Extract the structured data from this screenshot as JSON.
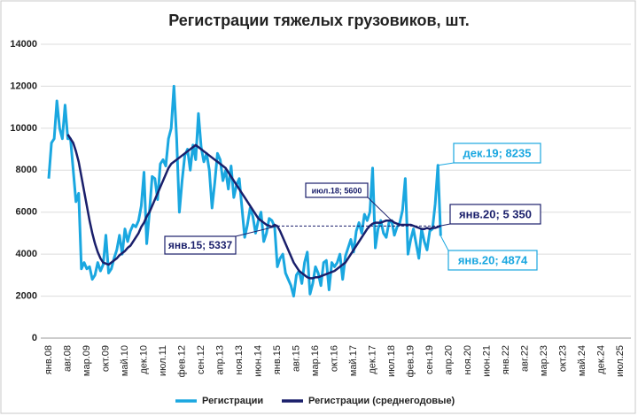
{
  "chart_data": {
    "type": "line",
    "title": "Регистрации тяжелых грузовиков, шт.",
    "categories": [
      "янв.08",
      null,
      null,
      null,
      null,
      null,
      null,
      "авг.08",
      null,
      null,
      null,
      null,
      null,
      null,
      "мар.09",
      null,
      null,
      null,
      null,
      null,
      null,
      "окт.09",
      null,
      null,
      null,
      null,
      null,
      null,
      "май.10",
      null,
      null,
      null,
      null,
      null,
      null,
      "дек.10",
      null,
      null,
      null,
      null,
      null,
      null,
      "июл.11",
      null,
      null,
      null,
      null,
      null,
      null,
      "фев.12",
      null,
      null,
      null,
      null,
      null,
      null,
      "сен.12",
      null,
      null,
      null,
      null,
      null,
      null,
      "апр.13",
      null,
      null,
      null,
      null,
      null,
      null,
      "ноя.13",
      null,
      null,
      null,
      null,
      null,
      null,
      "июн.14",
      null,
      null,
      null,
      null,
      null,
      null,
      "янв.15",
      null,
      null,
      null,
      null,
      null,
      null,
      "авг.15",
      null,
      null,
      null,
      null,
      null,
      null,
      "мар.16",
      null,
      null,
      null,
      null,
      null,
      null,
      "окт.16",
      null,
      null,
      null,
      null,
      null,
      null,
      "май.17",
      null,
      null,
      null,
      null,
      null,
      null,
      "дек.17",
      null,
      null,
      null,
      null,
      null,
      null,
      "июл.18",
      null,
      null,
      null,
      null,
      null,
      null,
      "фев.19",
      null,
      null,
      null,
      null,
      null,
      null,
      "сен.19",
      null,
      null,
      null,
      null,
      null,
      null,
      "апр.20",
      null,
      null,
      null,
      null,
      null,
      null,
      "ноя.20",
      null,
      null,
      null,
      null,
      null,
      null,
      "июн.21",
      null,
      null,
      null,
      null,
      null,
      null,
      "янв.22",
      null,
      null,
      null,
      null,
      null,
      null,
      "авг.22",
      null,
      null,
      null,
      null,
      null,
      null,
      "мар.23",
      null,
      null,
      null,
      null,
      null,
      null,
      "окт.23",
      null,
      null,
      null,
      null,
      null,
      null,
      "май.24",
      null,
      null,
      null,
      null,
      null,
      null,
      "дек.24",
      null,
      null,
      null,
      null,
      null,
      null,
      "июл.25"
    ],
    "series": [
      {
        "name": "Регистрации",
        "color": "#1aa7e0",
        "values": [
          7600,
          9300,
          9500,
          11300,
          10000,
          9500,
          11100,
          9500,
          9500,
          8000,
          6500,
          6900,
          3300,
          3600,
          3300,
          3400,
          2800,
          3000,
          3600,
          3200,
          3500,
          4900,
          3100,
          3300,
          3800,
          4200,
          4900,
          4000,
          5200,
          4600,
          5100,
          5400,
          5300,
          5600,
          6300,
          7900,
          4500,
          6000,
          7700,
          7600,
          6600,
          8300,
          8500,
          8200,
          9500,
          10000,
          12000,
          9500,
          6000,
          7500,
          8700,
          9000,
          8000,
          9200,
          8500,
          10700,
          9100,
          8400,
          8800,
          8000,
          6200,
          7400,
          8800,
          8500,
          7500,
          8000,
          7100,
          8200,
          6700,
          7300,
          7600,
          6200,
          4800,
          5400,
          6200,
          5800,
          5000,
          5600,
          6000,
          4600,
          5000,
          5700,
          5600,
          5300,
          3400,
          3800,
          4000,
          3100,
          2800,
          2500,
          2000,
          3000,
          3200,
          2600,
          3600,
          4100,
          2100,
          2600,
          3400,
          3100,
          2500,
          3600,
          3700,
          2300,
          3600,
          3400,
          3600,
          4000,
          2800,
          3900,
          4300,
          4700,
          4100,
          5100,
          5500,
          5000,
          5900,
          5600,
          6000,
          8100,
          4300,
          5200,
          5600,
          5000,
          4800,
          5500,
          5600,
          4900,
          5300,
          5500,
          6100,
          7600,
          4000,
          4700,
          5200,
          4500,
          3800,
          5200,
          4600,
          4200,
          5100,
          5200,
          6400,
          8235,
          4874,
          null,
          null,
          null,
          null,
          null,
          null,
          null,
          null,
          null,
          null,
          null,
          null,
          null,
          null,
          null,
          null,
          null,
          null,
          null,
          null,
          null,
          null,
          null,
          null,
          null,
          null,
          null,
          null,
          null,
          null,
          null,
          null,
          null,
          null,
          null,
          null,
          null,
          null,
          null,
          null,
          null,
          null,
          null,
          null,
          null,
          null,
          null,
          null,
          null,
          null,
          null,
          null,
          null,
          null,
          null,
          null,
          null,
          null,
          null,
          null,
          null,
          null,
          null,
          null,
          null,
          null
        ]
      },
      {
        "name": "Регистрации (среднегодовые)",
        "color": "#1a1f6b",
        "values": [
          null,
          null,
          null,
          null,
          null,
          null,
          null,
          9700,
          9500,
          9300,
          8900,
          8400,
          7700,
          7000,
          6300,
          5600,
          5000,
          4500,
          4100,
          3800,
          3600,
          3550,
          3500,
          3600,
          3700,
          3800,
          3950,
          4050,
          4150,
          4300,
          4400,
          4600,
          4800,
          5000,
          5300,
          5500,
          5800,
          6000,
          6300,
          6600,
          6900,
          7200,
          7500,
          7800,
          8100,
          8300,
          8400,
          8500,
          8600,
          8700,
          8800,
          8900,
          9000,
          9100,
          9200,
          9100,
          9000,
          8900,
          8800,
          8700,
          8600,
          8500,
          8400,
          8300,
          8200,
          8100,
          7900,
          7700,
          7500,
          7300,
          7100,
          6900,
          6700,
          6500,
          6300,
          6100,
          5900,
          5700,
          5600,
          5500,
          5400,
          5350,
          5300,
          5400,
          5337,
          5100,
          4800,
          4500,
          4200,
          3900,
          3600,
          3400,
          3200,
          3100,
          3000,
          2900,
          2850,
          2850,
          2900,
          2900,
          2950,
          3000,
          3050,
          3100,
          3150,
          3200,
          3300,
          3400,
          3500,
          3600,
          3800,
          4000,
          4200,
          4400,
          4600,
          4800,
          5000,
          5200,
          5350,
          5450,
          5500,
          5500,
          5500,
          5550,
          5600,
          5600,
          5600,
          5500,
          5450,
          5400,
          5400,
          5400,
          5400,
          5400,
          5350,
          5300,
          5250,
          5200,
          5200,
          5250,
          5200,
          5250,
          5250,
          5300,
          5350,
          null,
          null,
          null,
          null,
          null,
          null,
          null,
          null,
          null,
          null,
          null,
          null,
          null,
          null,
          null,
          null,
          null,
          null,
          null,
          null,
          null,
          null,
          null,
          null,
          null,
          null,
          null,
          null,
          null,
          null,
          null,
          null,
          null,
          null,
          null,
          null,
          null,
          null,
          null,
          null,
          null,
          null,
          null,
          null,
          null,
          null,
          null,
          null,
          null,
          null,
          null,
          null,
          null,
          null,
          null,
          null,
          null,
          null,
          null,
          null,
          null,
          null,
          null,
          null,
          null,
          null
        ]
      }
    ],
    "ylim": [
      0,
      14000
    ],
    "yticks": [
      0,
      2000,
      4000,
      6000,
      8000,
      10000,
      12000,
      14000
    ],
    "grid": true,
    "legend": "bottom",
    "annotations": [
      "дек.19; 8235",
      "янв.20; 5 350",
      "янв.20; 4874",
      "янв.15; 5337",
      "июл.18; 5600"
    ]
  }
}
